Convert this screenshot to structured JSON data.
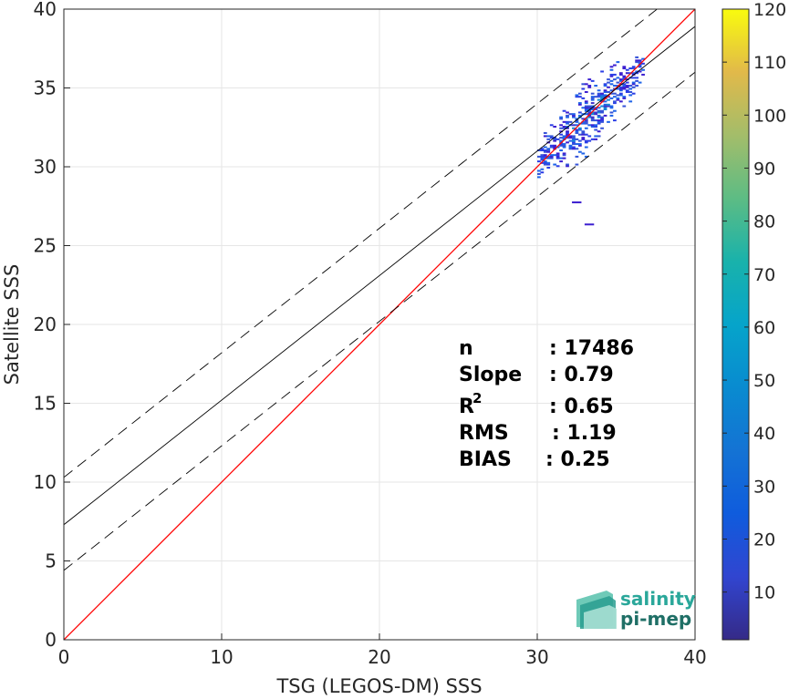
{
  "chart_data": {
    "type": "heatmap",
    "title": "",
    "xlabel": "TSG (LEGOS-DM) SSS",
    "ylabel": "Satellite SSS",
    "xlim": [
      0,
      40
    ],
    "ylim": [
      0,
      40
    ],
    "xticks": [
      "0",
      "10",
      "20",
      "30",
      "40"
    ],
    "yticks": [
      "0",
      "5",
      "10",
      "15",
      "20",
      "25",
      "30",
      "35",
      "40"
    ],
    "grid": true,
    "colorbar": {
      "range": [
        1,
        120
      ],
      "ticks": [
        "10",
        "20",
        "30",
        "40",
        "50",
        "60",
        "70",
        "80",
        "90",
        "100",
        "110",
        "120"
      ],
      "colormap": "parula"
    },
    "lines": [
      {
        "role": "identity",
        "slope": 1.0,
        "intercept": 0.0,
        "color": "#ff0000",
        "style": "solid"
      },
      {
        "role": "regression",
        "slope": 0.79,
        "intercept": 7.3,
        "color": "#000000",
        "style": "solid"
      },
      {
        "role": "regression+2rms",
        "slope": 0.79,
        "intercept": 10.3,
        "color": "#000000",
        "style": "dashed"
      },
      {
        "role": "regression-2rms",
        "slope": 0.79,
        "intercept": 4.4,
        "color": "#000000",
        "style": "dashed"
      }
    ],
    "density_cluster": {
      "x_range": [
        30.0,
        36.8
      ],
      "y_range": [
        29.3,
        37.0
      ],
      "center": [
        33.5,
        33.5
      ],
      "outliers": [
        [
          32.2,
          27.7
        ],
        [
          33.0,
          26.3
        ]
      ]
    },
    "stats": {
      "rows": [
        {
          "label": "n",
          "value": ": 17486"
        },
        {
          "label": "Slope",
          "value": ": 0.79"
        },
        {
          "label": "R",
          "sup": "2",
          "value": ": 0.65"
        },
        {
          "label": "RMS",
          "value": ": 1.19"
        },
        {
          "label": "BIAS",
          "value": ": 0.25"
        }
      ]
    }
  },
  "logo": {
    "line1": "salinity",
    "line2": "pi-mep"
  },
  "colors": {
    "identity_line": "#ff0000",
    "regression_line": "#000000",
    "grid": "#e6e6e6",
    "axes": "#262626",
    "logo": "#2aa79a"
  }
}
